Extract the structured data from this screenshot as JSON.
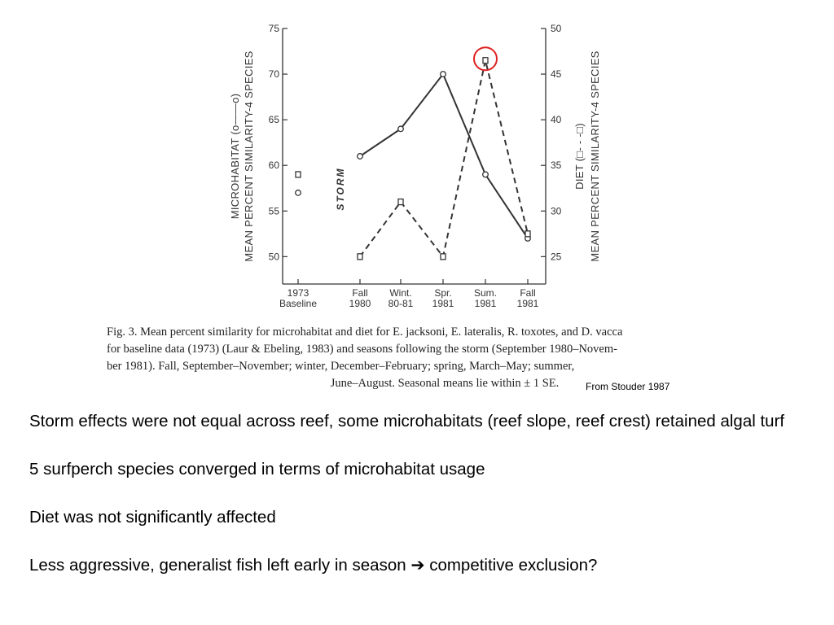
{
  "chart_data": {
    "type": "line",
    "categories": [
      "1973 Baseline",
      "Fall 1980",
      "Wint. 80-81",
      "Spr. 1981",
      "Sum. 1981",
      "Fall 1981"
    ],
    "category_lines": [
      [
        "1973",
        "Baseline"
      ],
      [
        "Fall",
        "1980"
      ],
      [
        "Wint.",
        "80-81"
      ],
      [
        "Spr.",
        "1981"
      ],
      [
        "Sum.",
        "1981"
      ],
      [
        "Fall",
        "1981"
      ]
    ],
    "ylabel_left": [
      "MICROHABITAT (o——o)",
      "MEAN PERCENT SIMILARITY-4 SPECIES"
    ],
    "ylabel_right": [
      "DIET (□- - -□)",
      "MEAN PERCENT SIMILARITY-4 SPECIES"
    ],
    "ylim_left": [
      47,
      75
    ],
    "ylim_right": [
      22,
      50
    ],
    "yticks_left": [
      50,
      55,
      60,
      65,
      70,
      75
    ],
    "yticks_right": [
      25,
      30,
      35,
      40,
      45,
      50
    ],
    "annotation": "STORM",
    "series": [
      {
        "name": "MICROHABITAT",
        "axis": "left",
        "marker": "circle",
        "style": "solid",
        "values": [
          57,
          61,
          64,
          70,
          59,
          52
        ]
      },
      {
        "name": "DIET",
        "axis": "right",
        "marker": "square",
        "style": "dashed",
        "values": [
          34,
          25,
          31,
          25,
          46.5,
          27.5
        ]
      }
    ],
    "highlight": {
      "series": "DIET",
      "category": "Sum. 1981",
      "color": "#e02020"
    },
    "baseline_disconnected": true
  },
  "caption": {
    "lines": [
      "Fig. 3. Mean percent similarity for microhabitat and diet for E. jacksoni, E. lateralis, R. toxotes, and D. vacca",
      "for baseline data (1973) (Laur & Ebeling, 1983) and seasons following the storm (September 1980–Novem-",
      "ber 1981). Fall, September–November; winter, December–February; spring, March–May; summer,",
      "June–August. Seasonal means lie within ± 1 SE."
    ]
  },
  "source": "From Stouder 1987",
  "bullets": [
    "Storm effects were not equal across reef, some microhabitats (reef slope, reef crest) retained algal turf",
    "5 surfperch species converged in terms of microhabitat usage",
    "Diet was not significantly affected",
    "Less aggressive, generalist fish left early in season ➔ competitive exclusion?"
  ]
}
